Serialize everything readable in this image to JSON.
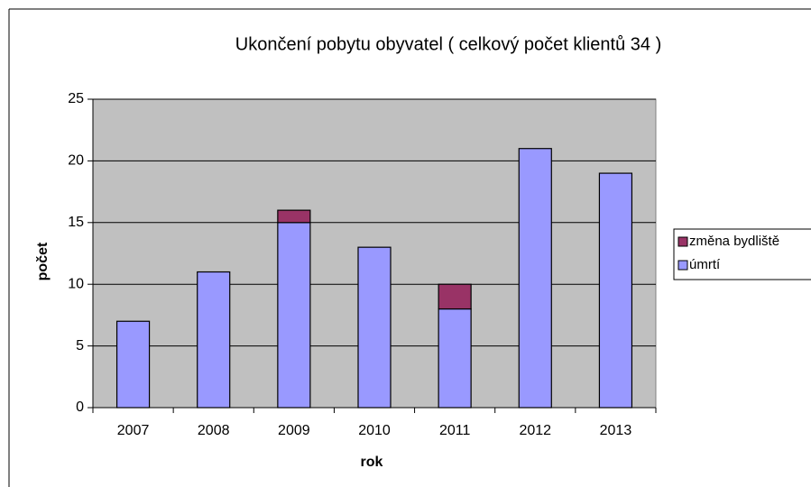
{
  "chart_data": {
    "type": "stacked_bar",
    "title": "Ukončení pobytu obyvatel ( celkový počet klientů 34 )",
    "x_label": "rok",
    "y_label": "počet",
    "categories": [
      "2007",
      "2008",
      "2009",
      "2010",
      "2011",
      "2012",
      "2013"
    ],
    "series": [
      {
        "name": "úmrtí",
        "color": "#9999ff",
        "values": [
          7,
          11,
          15,
          13,
          8,
          21,
          19
        ]
      },
      {
        "name": "změna bydliště",
        "color": "#993366",
        "values": [
          0,
          0,
          1,
          0,
          2,
          0,
          0
        ]
      }
    ],
    "ylim": [
      0,
      25
    ],
    "yticks": [
      0,
      5,
      10,
      15,
      20,
      25
    ],
    "grid": true,
    "legend": "right"
  }
}
